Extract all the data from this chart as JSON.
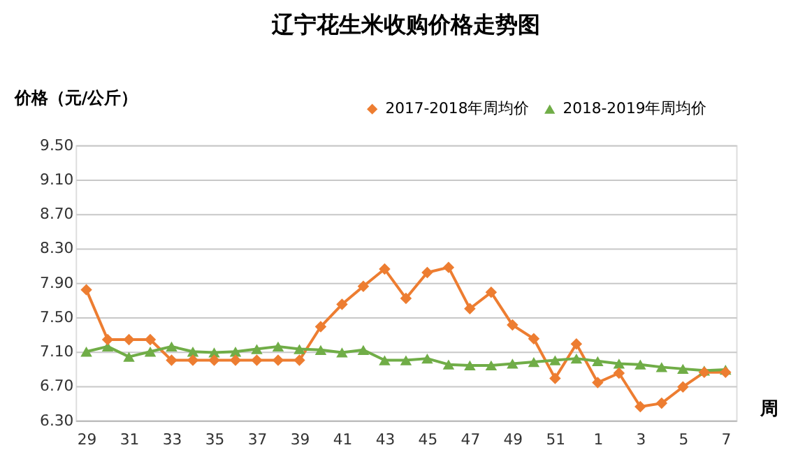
{
  "chart_data": {
    "type": "line",
    "title": "辽宁花生米收购价格走势图",
    "ylabel": "价格（元/公斤）",
    "xlabel": "周",
    "categories": [
      "29",
      null,
      "31",
      null,
      "33",
      null,
      "35",
      null,
      "37",
      null,
      "39",
      null,
      "41",
      null,
      "43",
      null,
      "45",
      null,
      "47",
      null,
      "49",
      null,
      "51",
      null,
      "1",
      null,
      "3",
      null,
      "5",
      null,
      "7"
    ],
    "series": [
      {
        "name": "2017-2018年周均价",
        "color": "#ed7d31",
        "marker": "diamond",
        "values": [
          7.82,
          7.24,
          7.24,
          7.24,
          7.0,
          7.0,
          7.0,
          7.0,
          7.0,
          7.0,
          7.0,
          7.39,
          7.65,
          7.86,
          8.06,
          7.72,
          8.02,
          8.08,
          7.6,
          7.79,
          7.41,
          7.25,
          6.79,
          7.19,
          6.74,
          6.85,
          6.46,
          6.5,
          6.69,
          6.86,
          6.86
        ]
      },
      {
        "name": "2018-2019年周均价",
        "color": "#70ad47",
        "marker": "triangle",
        "values": [
          7.1,
          7.16,
          7.04,
          7.1,
          7.16,
          7.1,
          7.09,
          7.1,
          7.13,
          7.16,
          7.13,
          7.12,
          7.09,
          7.12,
          7.0,
          7.0,
          7.02,
          6.95,
          6.94,
          6.94,
          6.96,
          6.98,
          7.0,
          7.02,
          6.99,
          6.96,
          6.95,
          6.92,
          6.9,
          6.88,
          6.89
        ]
      }
    ],
    "ylim": [
      6.3,
      9.5
    ],
    "yticks": [
      {
        "value": 6.3,
        "label": "6.30"
      },
      {
        "value": 6.7,
        "label": "6.70"
      },
      {
        "value": 7.1,
        "label": "7.10"
      },
      {
        "value": 7.5,
        "label": "7.50"
      },
      {
        "value": 7.9,
        "label": "7.90"
      },
      {
        "value": 8.3,
        "label": "8.30"
      },
      {
        "value": 8.7,
        "label": "8.70"
      },
      {
        "value": 9.1,
        "label": "9.10"
      },
      {
        "value": 9.5,
        "label": "9.50"
      }
    ],
    "grid": "y",
    "legend": "top right",
    "line_style": "solid"
  }
}
